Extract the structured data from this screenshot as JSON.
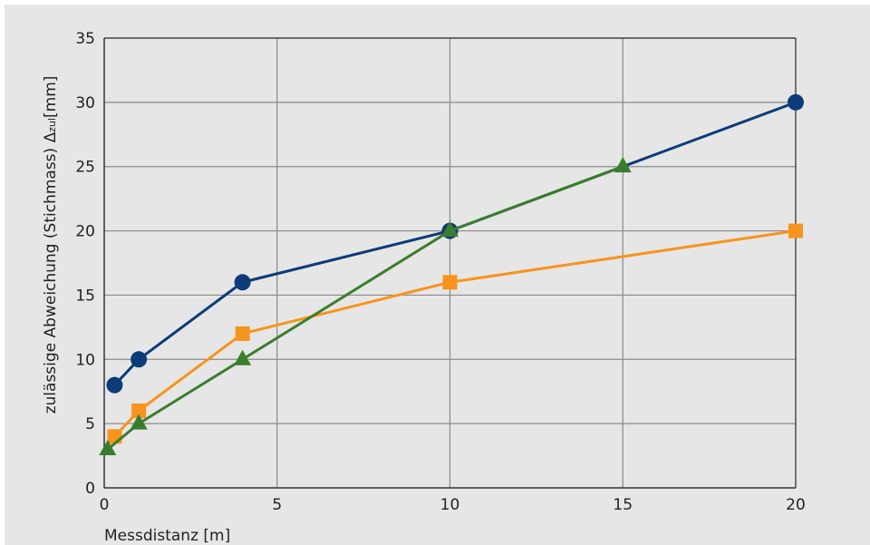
{
  "chart_data": {
    "type": "line",
    "title": "",
    "xlabel": "Messdistanz [m]",
    "ylabel": {
      "prefix": "zulässige Abweichung (Stichmass) Δ",
      "subscript": "zul",
      "suffix": "[mm]"
    },
    "xlim": [
      0,
      20
    ],
    "ylim": [
      0,
      35
    ],
    "x_ticks": [
      0,
      5,
      10,
      15,
      20
    ],
    "y_ticks": [
      0,
      5,
      10,
      15,
      20,
      25,
      30,
      35
    ],
    "grid": {
      "vertical": true,
      "horizontal": true
    },
    "series": [
      {
        "color": "#0d3b7a",
        "marker": "circle",
        "points": [
          [
            0.3,
            8
          ],
          [
            1,
            10
          ],
          [
            4,
            16
          ],
          [
            10,
            20
          ],
          [
            20,
            30
          ]
        ]
      },
      {
        "color": "#f7941d",
        "marker": "square",
        "points": [
          [
            0.3,
            4
          ],
          [
            1,
            6
          ],
          [
            4,
            12
          ],
          [
            10,
            16
          ],
          [
            20,
            20
          ]
        ]
      },
      {
        "color": "#3a7d2c",
        "marker": "triangle",
        "points": [
          [
            0.1,
            3
          ],
          [
            1,
            5
          ],
          [
            4,
            10
          ],
          [
            10,
            20
          ],
          [
            15,
            25
          ]
        ]
      }
    ]
  },
  "colors": {
    "panel_background": "#e6e6e6",
    "plot_background": "#e6e6e6",
    "grid": "#8a8a8a",
    "axis": "#333333"
  }
}
